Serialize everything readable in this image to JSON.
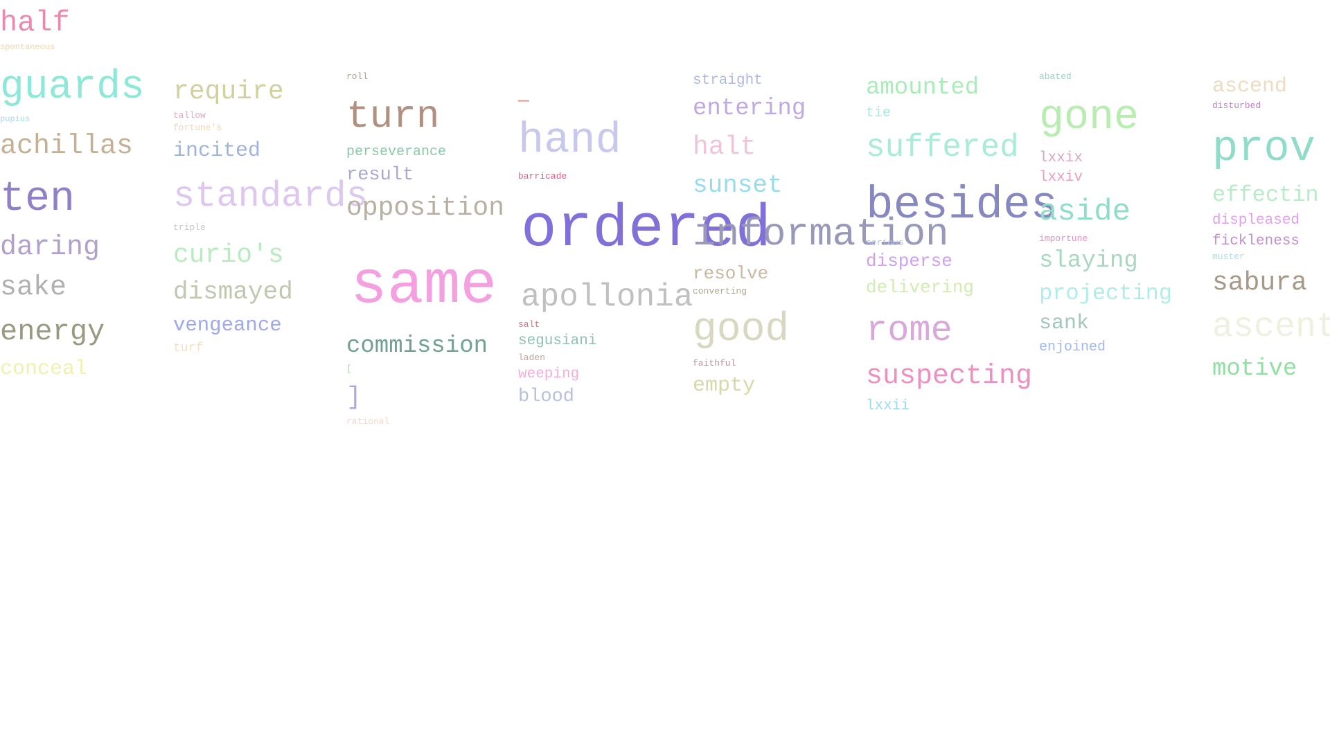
{
  "words": [
    {
      "text": "half",
      "color": "#e98ab0"
    },
    {
      "text": "spontaneous",
      "color": "#f0d4a8"
    },
    {
      "text": "guards",
      "color": "#8ee8d8"
    },
    {
      "text": "pupius",
      "color": "#a8d8f0"
    },
    {
      "text": "achillas",
      "color": "#c4b094"
    },
    {
      "text": "ten",
      "color": "#9080c8"
    },
    {
      "text": "daring",
      "color": "#b0a0cc"
    },
    {
      "text": "sake",
      "color": "#b0b0b0"
    },
    {
      "text": "energy",
      "color": "#9a9a80"
    },
    {
      "text": "conceal",
      "color": "#f0f0b0"
    },
    {
      "text": "require",
      "color": "#d0d0a0"
    },
    {
      "text": "tallow",
      "color": "#f0a0c0"
    },
    {
      "text": "fortune's",
      "color": "#f4d4b0"
    },
    {
      "text": "incited",
      "color": "#a0b4d8"
    },
    {
      "text": "standards",
      "color": "#dcc8ee"
    },
    {
      "text": "triple",
      "color": "#c8c8c8"
    },
    {
      "text": "curio's",
      "color": "#b8ecc0"
    },
    {
      "text": "dismayed",
      "color": "#c0c8b0"
    },
    {
      "text": "vengeance",
      "color": "#a0a8ec"
    },
    {
      "text": "turf",
      "color": "#f4e0c0"
    },
    {
      "text": "roll",
      "color": "#b0a080"
    },
    {
      "text": "turn",
      "color": "#b09080"
    },
    {
      "text": "perseverance",
      "color": "#8cc8a8"
    },
    {
      "text": "result",
      "color": "#a8a8d0"
    },
    {
      "text": "opposition",
      "color": "#b8b0a0"
    },
    {
      "text": "same",
      "color": "#f4a0e0"
    },
    {
      "text": "commission",
      "color": "#70a090"
    },
    {
      "text": "[",
      "color": "#a0d8a0"
    },
    {
      "text": "]",
      "color": "#b0a8e0"
    },
    {
      "text": "rational",
      "color": "#f4d8c8"
    },
    {
      "text": "—",
      "color": "#f08080"
    },
    {
      "text": "hand",
      "color": "#c8c8ec"
    },
    {
      "text": "barricade",
      "color": "#e06080"
    },
    {
      "text": "ordered",
      "color": "#8070d8"
    },
    {
      "text": "apollonia",
      "color": "#c0c0c0"
    },
    {
      "text": "salt",
      "color": "#e07080"
    },
    {
      "text": "segusiani",
      "color": "#90c0b0"
    },
    {
      "text": "laden",
      "color": "#c8a090"
    },
    {
      "text": "weeping",
      "color": "#f0b0d8"
    },
    {
      "text": "blood",
      "color": "#b8c0dc"
    },
    {
      "text": "straight",
      "color": "#b0b8dc"
    },
    {
      "text": "entering",
      "color": "#c0a8e0"
    },
    {
      "text": "halt",
      "color": "#f0c4d8"
    },
    {
      "text": "sunset",
      "color": "#98dcec"
    },
    {
      "text": "information",
      "color": "#9898b8"
    },
    {
      "text": "resolve",
      "color": "#c8b8a0"
    },
    {
      "text": "converting",
      "color": "#b0a890"
    },
    {
      "text": "good",
      "color": "#d8d8c0"
    },
    {
      "text": "faithful",
      "color": "#c090a0"
    },
    {
      "text": "empty",
      "color": "#d8d8a8"
    },
    {
      "text": "amounted",
      "color": "#a8ecb8"
    },
    {
      "text": "tie",
      "color": "#a8e8e0"
    },
    {
      "text": "suffered",
      "color": "#a8ecd8"
    },
    {
      "text": "besides",
      "color": "#8888c0"
    },
    {
      "text": "serious",
      "color": "#b0c0f0"
    },
    {
      "text": "disperse",
      "color": "#d0a0ec"
    },
    {
      "text": "delivering",
      "color": "#d0ecb0"
    },
    {
      "text": "rome",
      "color": "#d8a8d8"
    },
    {
      "text": "suspecting",
      "color": "#ec90c0"
    },
    {
      "text": "lxxii",
      "color": "#a0d8ec"
    },
    {
      "text": "abated",
      "color": "#90d8c8"
    },
    {
      "text": "gone",
      "color": "#b8ecb0"
    },
    {
      "text": "lxxix",
      "color": "#d8a8c0"
    },
    {
      "text": "lxxiv",
      "color": "#e8a0c0"
    },
    {
      "text": "aside",
      "color": "#90dcc8"
    },
    {
      "text": "importune",
      "color": "#e890c0"
    },
    {
      "text": "slaying",
      "color": "#a8d8c0"
    },
    {
      "text": "projecting",
      "color": "#b0ece8"
    },
    {
      "text": "sank",
      "color": "#a0c8b8"
    },
    {
      "text": "enjoined",
      "color": "#a0b8ec"
    },
    {
      "text": "ascend",
      "color": "#ecdcc0"
    },
    {
      "text": "disturbed",
      "color": "#c080c8"
    },
    {
      "text": "prov",
      "color": "#90dcc8"
    },
    {
      "text": "effectin",
      "color": "#b8ecc8"
    },
    {
      "text": "displeased",
      "color": "#e0a0ec"
    },
    {
      "text": "fickleness",
      "color": "#c090c8"
    },
    {
      "text": "muster",
      "color": "#a8e0e8"
    },
    {
      "text": "sabura",
      "color": "#a89888"
    },
    {
      "text": "ascent",
      "color": "#f0f0e0"
    },
    {
      "text": "motive",
      "color": "#90e0a0"
    }
  ]
}
